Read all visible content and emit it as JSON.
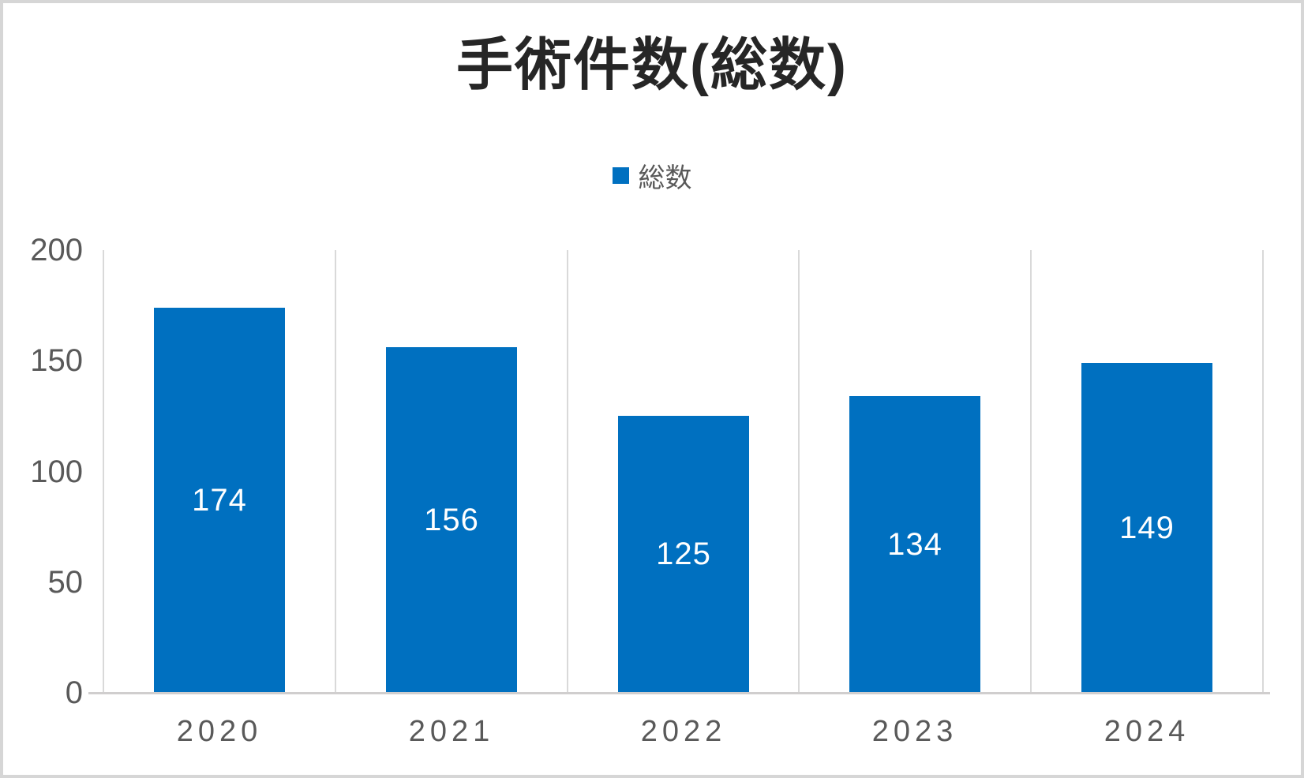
{
  "chart_title": "手術件数(総数)",
  "legend": {
    "label": "総数"
  },
  "chart_data": {
    "type": "bar",
    "title": "手術件数(総数)",
    "categories": [
      "2020",
      "2021",
      "2022",
      "2023",
      "2024"
    ],
    "series": [
      {
        "name": "総数",
        "values": [
          174,
          156,
          125,
          134,
          149
        ]
      }
    ],
    "xlabel": "",
    "ylabel": "",
    "ylim": [
      0,
      200
    ],
    "yticks": [
      0,
      50,
      100,
      150,
      200
    ],
    "grid": "vertical-category-boundaries",
    "legend_position": "top-center",
    "data_labels": "inside-center"
  },
  "colors": {
    "bar": "#0070c0",
    "title_text": "#262626",
    "axis_text": "#595959",
    "data_label_text": "#ffffff",
    "gridline": "#d9d9d9",
    "axis_line": "#d0cece",
    "outer_border": "#d6d6d6"
  }
}
